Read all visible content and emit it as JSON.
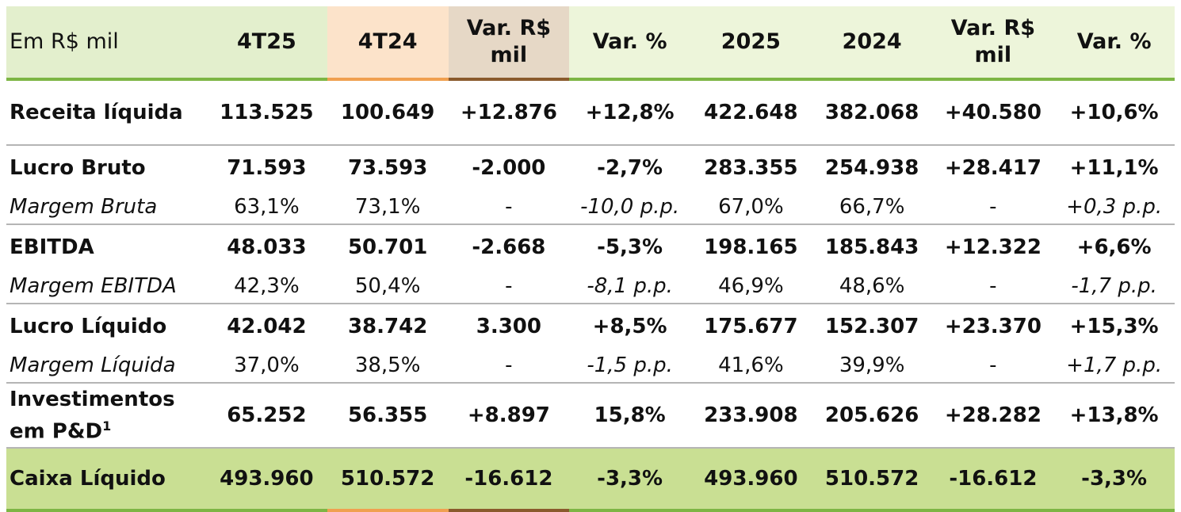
{
  "table": {
    "header": [
      "Em R$ mil",
      "4T25",
      "4T24",
      "Var. R$ mil",
      "Var. %",
      "2025",
      "2024",
      "Var. R$ mil",
      "Var. %"
    ],
    "rows": [
      {
        "label": "Receita líquida",
        "values": [
          "113.525",
          "100.649",
          "+12.876",
          "+12,8%",
          "422.648",
          "382.068",
          "+40.580",
          "+10,6%"
        ]
      },
      {
        "label": "Lucro Bruto",
        "values": [
          "71.593",
          "73.593",
          "-2.000",
          "-2,7%",
          "283.355",
          "254.938",
          "+28.417",
          "+11,1%"
        ]
      },
      {
        "label": "Margem Bruta",
        "values": [
          "63,1%",
          "73,1%",
          "-",
          "-10,0 p.p.",
          "67,0%",
          "66,7%",
          "-",
          "+0,3 p.p."
        ]
      },
      {
        "label": "EBITDA",
        "values": [
          "48.033",
          "50.701",
          "-2.668",
          "-5,3%",
          "198.165",
          "185.843",
          "+12.322",
          "+6,6%"
        ]
      },
      {
        "label": "Margem EBITDA",
        "values": [
          "42,3%",
          "50,4%",
          "-",
          "-8,1 p.p.",
          "46,9%",
          "48,6%",
          "-",
          "-1,7 p.p."
        ]
      },
      {
        "label": "Lucro Líquido",
        "values": [
          "42.042",
          "38.742",
          "3.300",
          "+8,5%",
          "175.677",
          "152.307",
          "+23.370",
          "+15,3%"
        ]
      },
      {
        "label": "Margem Líquida",
        "values": [
          "37,0%",
          "38,5%",
          "-",
          "-1,5 p.p.",
          "41,6%",
          "39,9%",
          "-",
          "+1,7 p.p."
        ]
      },
      {
        "label": "Investimentos em P&D",
        "footnote": "1",
        "values": [
          "65.252",
          "56.355",
          "+8.897",
          "15,8%",
          "233.908",
          "205.626",
          "+28.282",
          "+13,8%"
        ]
      },
      {
        "label": "Caixa Líquido",
        "values": [
          "493.960",
          "510.572",
          "-16.612",
          "-3,3%",
          "493.960",
          "510.572",
          "-16.612",
          "-3,3%"
        ]
      }
    ]
  }
}
